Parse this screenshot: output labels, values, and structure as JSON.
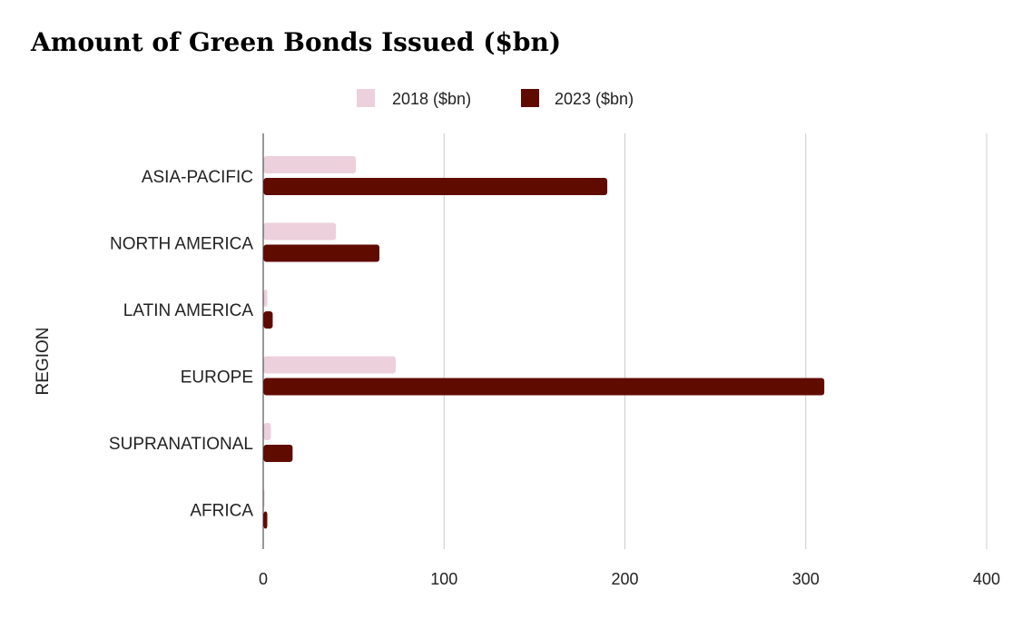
{
  "chart_data": {
    "type": "bar",
    "orientation": "horizontal",
    "title": "Amount of Green Bonds Issued ($bn)",
    "ylabel": "REGION",
    "xlabel": "",
    "categories": [
      "ASIA-PACIFIC",
      "NORTH AMERICA",
      "LATIN AMERICA",
      "EUROPE",
      "SUPRANATIONAL",
      "AFRICA"
    ],
    "series": [
      {
        "name": "2018 ($bn)",
        "color": "#ecd0dc",
        "values": [
          51,
          40,
          2,
          73,
          4,
          0.5
        ]
      },
      {
        "name": "2023 ($bn)",
        "color": "#600b00",
        "values": [
          190,
          64,
          5,
          310,
          16,
          2
        ]
      }
    ],
    "xlim": [
      0,
      400
    ],
    "xticks": [
      0,
      100,
      200,
      300,
      400
    ],
    "grid": true,
    "legend": "top"
  }
}
